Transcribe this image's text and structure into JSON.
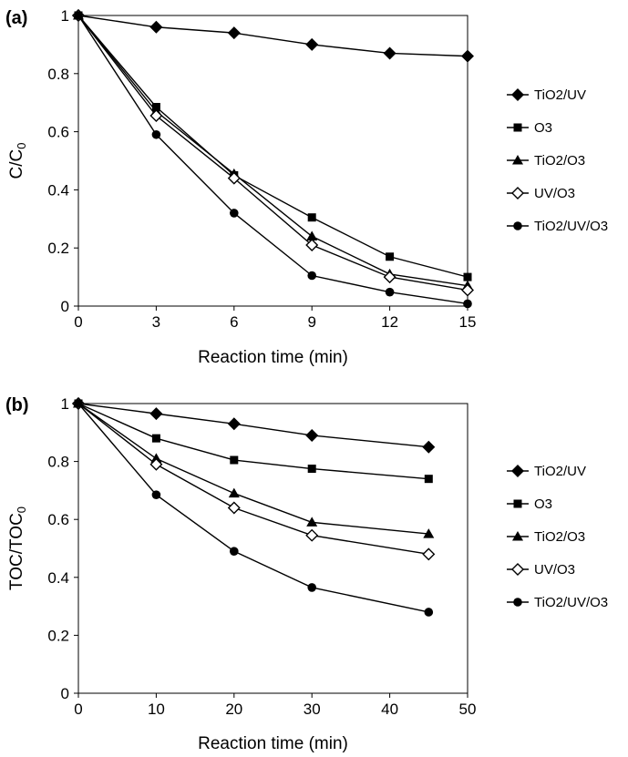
{
  "chart_data": [
    {
      "panel": "(a)",
      "type": "line",
      "xlabel": "Reaction time (min)",
      "ylabel": "C/C",
      "ylabel_sub": "0",
      "xlim": [
        0,
        15
      ],
      "ylim": [
        0,
        1
      ],
      "xticks": [
        "0",
        "3",
        "6",
        "9",
        "12",
        "15"
      ],
      "yticks": [
        "0",
        "0.2",
        "0.4",
        "0.6",
        "0.8",
        "1"
      ],
      "x": [
        0,
        3,
        6,
        9,
        12,
        15
      ],
      "legend_position": "right",
      "series": [
        {
          "name": "TiO2/UV",
          "marker": "diamond",
          "values": [
            1.0,
            0.96,
            0.94,
            0.9,
            0.87,
            0.86
          ]
        },
        {
          "name": "O3",
          "marker": "square",
          "values": [
            1.0,
            0.685,
            0.45,
            0.305,
            0.17,
            0.1
          ]
        },
        {
          "name": "TiO2/O3",
          "marker": "triangle",
          "values": [
            1.0,
            0.67,
            0.455,
            0.24,
            0.11,
            0.07
          ]
        },
        {
          "name": "UV/O3",
          "marker": "diamond-open",
          "values": [
            1.0,
            0.655,
            0.44,
            0.21,
            0.1,
            0.055
          ]
        },
        {
          "name": "TiO2/UV/O3",
          "marker": "circle",
          "values": [
            1.0,
            0.59,
            0.32,
            0.105,
            0.048,
            0.008
          ]
        }
      ]
    },
    {
      "panel": "(b)",
      "type": "line",
      "xlabel": "Reaction time (min)",
      "ylabel": "TOC/TOC",
      "ylabel_sub": "0",
      "xlim": [
        0,
        50
      ],
      "ylim": [
        0,
        1
      ],
      "xticks": [
        "0",
        "10",
        "20",
        "30",
        "40",
        "50"
      ],
      "yticks": [
        "0",
        "0.2",
        "0.4",
        "0.6",
        "0.8",
        "1"
      ],
      "x": [
        0,
        10,
        20,
        30,
        45
      ],
      "legend_position": "right",
      "series": [
        {
          "name": "TiO2/UV",
          "marker": "diamond",
          "values": [
            1.0,
            0.965,
            0.93,
            0.89,
            0.85
          ]
        },
        {
          "name": "O3",
          "marker": "square",
          "values": [
            1.0,
            0.88,
            0.805,
            0.775,
            0.74
          ]
        },
        {
          "name": "TiO2/O3",
          "marker": "triangle",
          "values": [
            1.0,
            0.81,
            0.69,
            0.59,
            0.55
          ]
        },
        {
          "name": "UV/O3",
          "marker": "diamond-open",
          "values": [
            1.0,
            0.79,
            0.64,
            0.545,
            0.48
          ]
        },
        {
          "name": "TiO2/UV/O3",
          "marker": "circle",
          "values": [
            1.0,
            0.685,
            0.49,
            0.365,
            0.28
          ]
        }
      ]
    }
  ]
}
